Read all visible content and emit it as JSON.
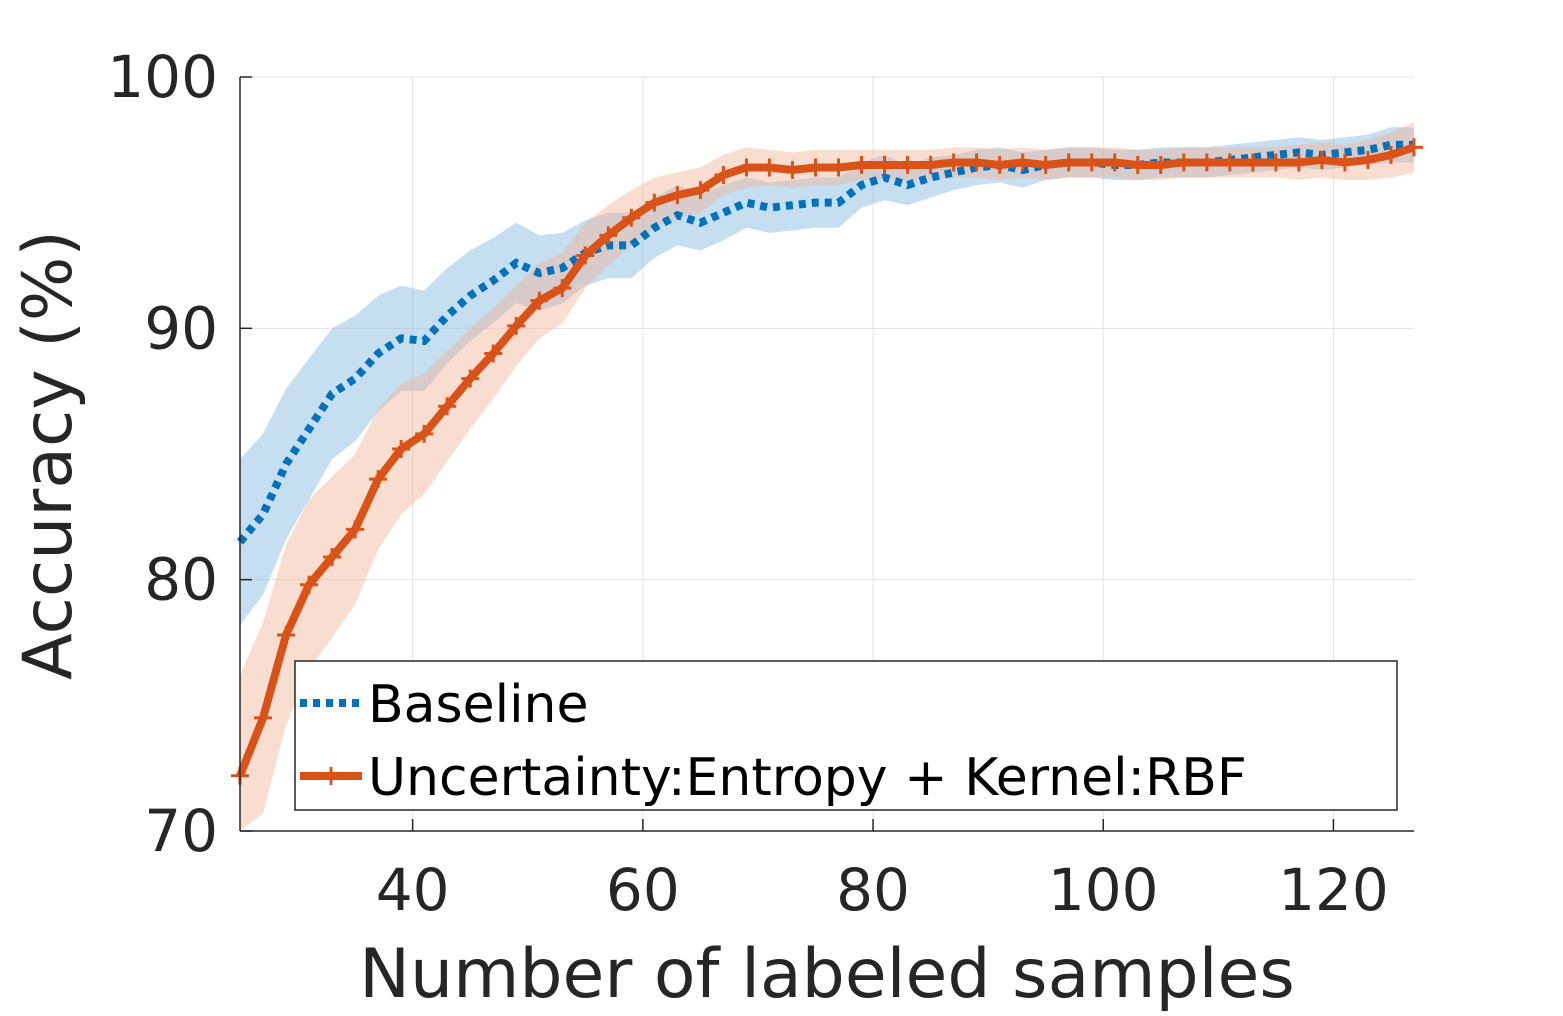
{
  "chart_data": {
    "type": "line",
    "xlabel": "Number of labeled samples",
    "ylabel": "Accuracy (%)",
    "xlim": [
      25,
      127
    ],
    "ylim": [
      70,
      100
    ],
    "xticks": [
      40,
      60,
      80,
      100,
      120
    ],
    "yticks": [
      70,
      80,
      90,
      100
    ],
    "grid": true,
    "legend_position": "bottom-right, inside axes",
    "series": [
      {
        "name": "Baseline",
        "color": "#0072BD",
        "band_color": "#7EB6DD",
        "line_style": "dotted",
        "x": [
          25,
          27,
          29,
          31,
          33,
          35,
          37,
          39,
          41,
          43,
          45,
          47,
          49,
          51,
          53,
          55,
          57,
          59,
          61,
          63,
          65,
          67,
          69,
          71,
          73,
          75,
          77,
          79,
          81,
          83,
          85,
          87,
          89,
          91,
          93,
          95,
          97,
          99,
          101,
          103,
          105,
          107,
          109,
          111,
          113,
          115,
          117,
          119,
          121,
          123,
          125,
          127
        ],
        "y": [
          81.5,
          82.6,
          84.6,
          86.0,
          87.4,
          88.0,
          89.0,
          89.6,
          89.5,
          90.5,
          91.3,
          91.9,
          92.6,
          92.2,
          92.4,
          93.0,
          93.3,
          93.3,
          94.0,
          94.5,
          94.2,
          94.6,
          95.0,
          94.8,
          94.9,
          95.0,
          95.0,
          95.7,
          96.0,
          95.7,
          96.0,
          96.2,
          96.4,
          96.5,
          96.3,
          96.5,
          96.6,
          96.6,
          96.5,
          96.5,
          96.6,
          96.6,
          96.6,
          96.7,
          96.8,
          96.9,
          97.0,
          96.9,
          97.0,
          97.1,
          97.3,
          97.3
        ],
        "std": [
          3.3,
          3.2,
          3.0,
          2.8,
          2.6,
          2.5,
          2.3,
          2.1,
          2.0,
          1.9,
          1.8,
          1.7,
          1.6,
          1.5,
          1.4,
          1.3,
          1.3,
          1.3,
          1.2,
          1.2,
          1.1,
          1.1,
          1.0,
          1.0,
          1.0,
          1.0,
          1.0,
          0.9,
          0.9,
          0.8,
          0.8,
          0.7,
          0.7,
          0.7,
          0.7,
          0.6,
          0.6,
          0.6,
          0.6,
          0.6,
          0.6,
          0.6,
          0.6,
          0.6,
          0.6,
          0.6,
          0.6,
          0.6,
          0.6,
          0.6,
          0.7,
          0.7
        ]
      },
      {
        "name": "Uncertainty:Entropy + Kernel:RBF",
        "color": "#D95319",
        "band_color": "#F2B49A",
        "line_style": "solid-plus",
        "x": [
          25,
          27,
          29,
          31,
          33,
          35,
          37,
          39,
          41,
          43,
          45,
          47,
          49,
          51,
          53,
          55,
          57,
          59,
          61,
          63,
          65,
          67,
          69,
          71,
          73,
          75,
          77,
          79,
          81,
          83,
          85,
          87,
          89,
          91,
          93,
          95,
          97,
          99,
          101,
          103,
          105,
          107,
          109,
          111,
          113,
          115,
          117,
          119,
          121,
          123,
          125,
          127
        ],
        "y": [
          72.2,
          74.5,
          77.8,
          79.8,
          80.9,
          82.0,
          84.0,
          85.2,
          85.8,
          86.9,
          88.0,
          89.0,
          90.1,
          91.1,
          91.6,
          92.9,
          93.7,
          94.4,
          95.0,
          95.3,
          95.5,
          96.1,
          96.4,
          96.4,
          96.3,
          96.4,
          96.4,
          96.5,
          96.5,
          96.5,
          96.5,
          96.6,
          96.6,
          96.5,
          96.6,
          96.5,
          96.6,
          96.6,
          96.6,
          96.5,
          96.5,
          96.6,
          96.6,
          96.6,
          96.6,
          96.6,
          96.6,
          96.7,
          96.6,
          96.7,
          96.9,
          97.2
        ],
        "std": [
          4.0,
          3.8,
          3.6,
          3.4,
          3.2,
          3.0,
          2.8,
          2.6,
          2.4,
          2.2,
          2.0,
          1.8,
          1.6,
          1.5,
          1.4,
          1.3,
          1.2,
          1.1,
          1.0,
          0.9,
          0.9,
          0.8,
          0.8,
          0.7,
          0.7,
          0.7,
          0.7,
          0.6,
          0.6,
          0.6,
          0.6,
          0.6,
          0.6,
          0.6,
          0.6,
          0.6,
          0.6,
          0.6,
          0.6,
          0.6,
          0.6,
          0.6,
          0.6,
          0.6,
          0.6,
          0.6,
          0.7,
          0.7,
          0.7,
          0.8,
          0.9,
          1.0
        ]
      }
    ]
  }
}
